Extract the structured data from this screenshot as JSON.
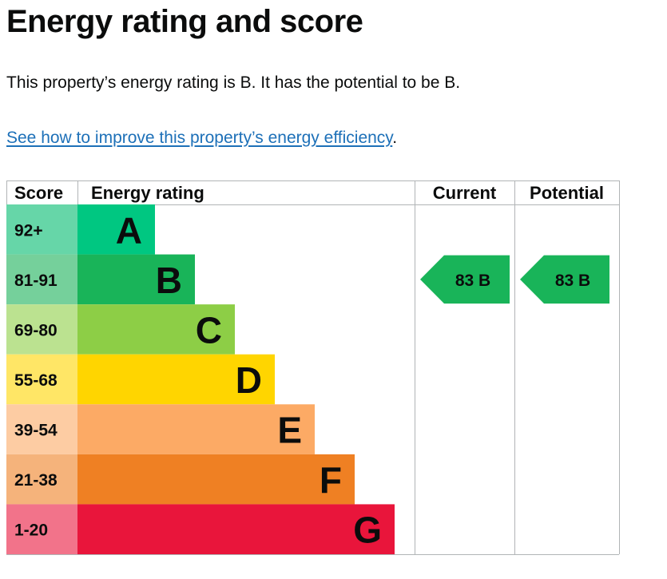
{
  "heading": "Energy rating and score",
  "summary": "This property’s energy rating is B. It has the potential to be B.",
  "improve_link": "See how to improve this property’s energy efficiency",
  "improve_link_suffix": ".",
  "chart_data": {
    "type": "bar",
    "columns": [
      "Score",
      "Energy rating",
      "Current",
      "Potential"
    ],
    "bands": [
      {
        "band": "A",
        "score": "92+",
        "color": "#00c781",
        "score_color": "#66d6a8"
      },
      {
        "band": "B",
        "score": "81-91",
        "color": "#19b459",
        "score_color": "#75d09b"
      },
      {
        "band": "C",
        "score": "69-80",
        "color": "#8dce46",
        "score_color": "#bbe290"
      },
      {
        "band": "D",
        "score": "55-68",
        "color": "#ffd500",
        "score_color": "#ffe666"
      },
      {
        "band": "E",
        "score": "39-54",
        "color": "#fcaa65",
        "score_color": "#fdcca3"
      },
      {
        "band": "F",
        "score": "21-38",
        "color": "#ef8023",
        "score_color": "#f5b37b"
      },
      {
        "band": "G",
        "score": "1-20",
        "color": "#e9153b",
        "score_color": "#f2738a"
      }
    ],
    "current": {
      "score": 83,
      "band": "B",
      "label": "83  B"
    },
    "potential": {
      "score": 83,
      "band": "B",
      "label": "83  B"
    }
  }
}
